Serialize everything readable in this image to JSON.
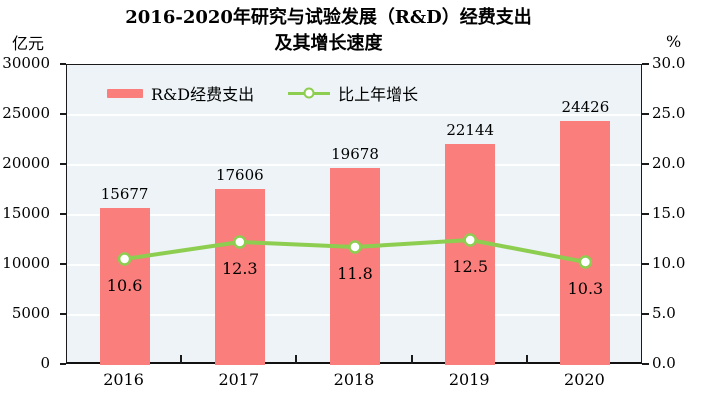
{
  "header": {
    "unit_left": "亿元",
    "unit_right": "%"
  },
  "chart_data": {
    "type": "combo-bar-line",
    "title_lines": [
      "2016-2020年研究与试验发展（R&D）经费支出",
      "及其增长速度"
    ],
    "categories": [
      "2016",
      "2017",
      "2018",
      "2019",
      "2020"
    ],
    "left_axis": {
      "unit": "亿元",
      "min": 0,
      "max": 30000,
      "step": 5000,
      "tick_labels": [
        "0",
        "5000",
        "10000",
        "15000",
        "20000",
        "25000",
        "30000"
      ]
    },
    "right_axis": {
      "unit": "%",
      "min": 0,
      "max": 30,
      "step": 5,
      "tick_labels": [
        "0.0",
        "5.0",
        "10.0",
        "15.0",
        "20.0",
        "25.0",
        "30.0"
      ]
    },
    "series": [
      {
        "name": "R&D经费支出",
        "type": "bar",
        "axis": "left",
        "color": "#F97E7C",
        "values": [
          15677,
          17606,
          19678,
          22144,
          24426
        ],
        "data_labels": [
          "15677",
          "17606",
          "19678",
          "22144",
          "24426"
        ]
      },
      {
        "name": "比上年增长",
        "type": "line",
        "axis": "right",
        "color": "#8DCE51",
        "marker_fill": "#FFFFFF",
        "values": [
          10.6,
          12.3,
          11.8,
          12.5,
          10.3
        ],
        "data_labels": [
          "10.6",
          "12.3",
          "11.8",
          "12.5",
          "10.3"
        ]
      }
    ],
    "legend_position": "top-left-inside",
    "grid": "horizontal-white",
    "plot_bg": "#EDF3F6",
    "grid_color": "#FFFFFF",
    "frame_color": "#1A1A1A",
    "label_color": "#000000"
  }
}
